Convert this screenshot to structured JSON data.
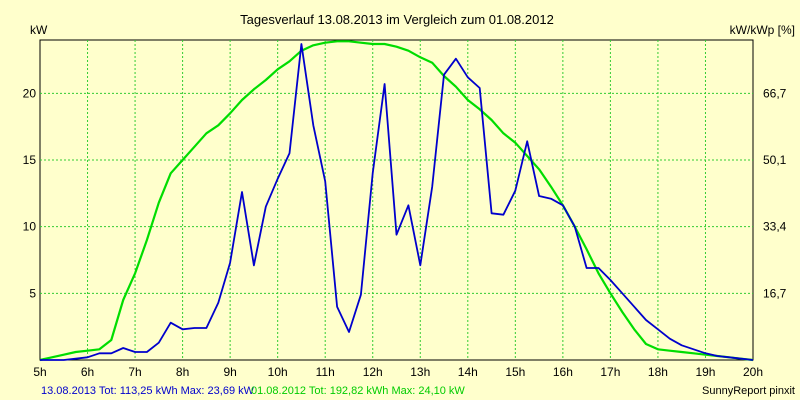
{
  "chart_data": {
    "type": "line",
    "title": "Tagesverlauf 13.08.2013 im Vergleich zum 01.08.2012",
    "ylabel_left": "kW",
    "ylabel_right": "kW/kWp [%]",
    "x_ticks": [
      "5h",
      "6h",
      "7h",
      "8h",
      "9h",
      "10h",
      "11h",
      "12h",
      "13h",
      "14h",
      "15h",
      "16h",
      "17h",
      "18h",
      "19h",
      "20h"
    ],
    "xlim": [
      5,
      20
    ],
    "ylim_left": [
      0,
      24
    ],
    "y_ticks_left": [
      "5",
      "10",
      "15",
      "20"
    ],
    "y_ticks_left_values": [
      5,
      10,
      15,
      20
    ],
    "y_ticks_right": [
      "16,7",
      "33,4",
      "50,1",
      "66,7"
    ],
    "grid": true,
    "series": [
      {
        "name": "13.08.2013",
        "color": "#0000CC",
        "x": [
          5.0,
          5.25,
          5.5,
          5.75,
          6.0,
          6.25,
          6.5,
          6.75,
          7.0,
          7.25,
          7.5,
          7.75,
          8.0,
          8.25,
          8.5,
          8.75,
          9.0,
          9.25,
          9.5,
          9.75,
          10.0,
          10.25,
          10.5,
          10.75,
          11.0,
          11.25,
          11.5,
          11.75,
          12.0,
          12.25,
          12.5,
          12.75,
          13.0,
          13.25,
          13.5,
          13.75,
          14.0,
          14.25,
          14.5,
          14.75,
          15.0,
          15.25,
          15.5,
          15.75,
          16.0,
          16.25,
          16.5,
          16.75,
          17.0,
          17.25,
          17.5,
          17.75,
          18.0,
          18.25,
          18.5,
          18.75,
          19.0,
          19.25,
          19.5,
          19.75,
          20.0
        ],
        "y": [
          0.0,
          0.0,
          0.0,
          0.1,
          0.2,
          0.5,
          0.5,
          0.9,
          0.6,
          0.6,
          1.3,
          2.8,
          2.3,
          2.4,
          2.4,
          4.3,
          7.3,
          12.6,
          7.1,
          11.5,
          13.6,
          15.5,
          23.7,
          17.6,
          13.4,
          4.0,
          2.1,
          4.9,
          14.0,
          20.7,
          9.4,
          11.6,
          7.1,
          13.0,
          21.4,
          22.6,
          21.2,
          20.4,
          11.0,
          10.9,
          12.7,
          16.4,
          12.3,
          12.1,
          11.6,
          10.0,
          6.9,
          6.9,
          6.0,
          5.0,
          4.0,
          3.0,
          2.3,
          1.6,
          1.1,
          0.8,
          0.5,
          0.3,
          0.2,
          0.1,
          0.0
        ]
      },
      {
        "name": "01.08.2012",
        "color": "#00DD00",
        "x": [
          5.0,
          5.25,
          5.5,
          5.75,
          6.0,
          6.25,
          6.5,
          6.75,
          7.0,
          7.25,
          7.5,
          7.75,
          8.0,
          8.25,
          8.5,
          8.75,
          9.0,
          9.25,
          9.5,
          9.75,
          10.0,
          10.25,
          10.5,
          10.75,
          11.0,
          11.25,
          11.5,
          11.75,
          12.0,
          12.25,
          12.5,
          12.75,
          13.0,
          13.25,
          13.5,
          13.75,
          14.0,
          14.25,
          14.5,
          14.75,
          15.0,
          15.25,
          15.5,
          15.75,
          16.0,
          16.25,
          16.5,
          16.75,
          17.0,
          17.25,
          17.5,
          17.75,
          18.0,
          18.25,
          18.5,
          18.75,
          19.0,
          19.25,
          19.5,
          19.75,
          20.0
        ],
        "y": [
          0.0,
          0.2,
          0.4,
          0.6,
          0.7,
          0.8,
          1.5,
          4.5,
          6.5,
          9.0,
          11.8,
          14.0,
          15.0,
          16.0,
          17.0,
          17.6,
          18.5,
          19.5,
          20.3,
          21.0,
          21.8,
          22.4,
          23.2,
          23.6,
          23.8,
          23.9,
          23.9,
          23.8,
          23.7,
          23.7,
          23.5,
          23.2,
          22.7,
          22.3,
          21.3,
          20.5,
          19.5,
          18.8,
          18.0,
          17.0,
          16.3,
          15.3,
          14.3,
          13.0,
          11.6,
          10.0,
          8.3,
          6.5,
          5.0,
          3.6,
          2.3,
          1.2,
          0.8,
          0.7,
          0.6,
          0.5,
          0.4,
          0.3,
          0.2,
          0.1,
          0.0
        ]
      }
    ]
  },
  "footer": {
    "s1_label": "13.08.2013 Tot: 113,25 kWh Max: 23,69 kW",
    "s2_label": "01.08.2012 Tot: 192,82 kWh Max: 24,10 kW",
    "credit": "SunnyReport pinxit"
  }
}
